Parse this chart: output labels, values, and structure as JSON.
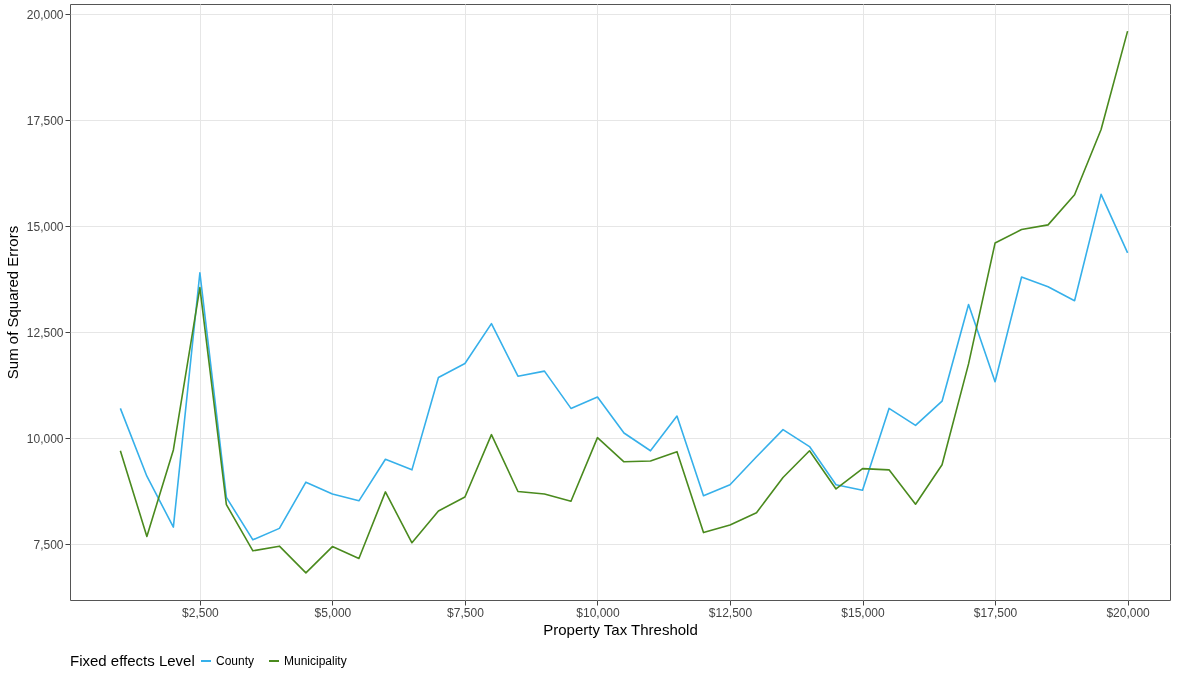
{
  "chart_data": {
    "type": "line",
    "xlabel": "Property Tax Threshold",
    "ylabel": "Sum of Squared Errors",
    "legend_title": "Fixed effects Level",
    "legend": "bottom",
    "grid": true,
    "x": [
      1000,
      1500,
      2000,
      2500,
      3000,
      3500,
      4000,
      4500,
      5000,
      5500,
      6000,
      6500,
      7000,
      7500,
      8000,
      8500,
      9000,
      9500,
      10000,
      10500,
      11000,
      11500,
      12000,
      12500,
      13000,
      13500,
      14000,
      14500,
      15000,
      15500,
      16000,
      16500,
      17000,
      17500,
      18000,
      18500,
      19000,
      19500,
      20000
    ],
    "xlim": [
      50,
      20800
    ],
    "xticks": [
      {
        "value": 2500,
        "label": "$2,500"
      },
      {
        "value": 5000,
        "label": "$5,000"
      },
      {
        "value": 7500,
        "label": "$7,500"
      },
      {
        "value": 10000,
        "label": "$10,000"
      },
      {
        "value": 12500,
        "label": "$12,500"
      },
      {
        "value": 15000,
        "label": "$15,000"
      },
      {
        "value": 17500,
        "label": "$17,500"
      },
      {
        "value": 20000,
        "label": "$20,000"
      }
    ],
    "ylim": [
      6180,
      20240
    ],
    "yticks": [
      {
        "value": 7500,
        "label": "7,500"
      },
      {
        "value": 10000,
        "label": "10,000"
      },
      {
        "value": 12500,
        "label": "12,500"
      },
      {
        "value": 15000,
        "label": "15,000"
      },
      {
        "value": 17500,
        "label": "17,500"
      },
      {
        "value": 20000,
        "label": "20,000"
      }
    ],
    "series": [
      {
        "name": "County",
        "color": "#36b0ea",
        "values": [
          10700,
          9100,
          7900,
          13900,
          8600,
          7600,
          7870,
          8960,
          8680,
          8520,
          9500,
          9250,
          11430,
          11760,
          12700,
          11460,
          11580,
          10700,
          10970,
          10120,
          9700,
          10520,
          8640,
          8900,
          9560,
          10200,
          9800,
          8900,
          8770,
          10700,
          10300,
          10870,
          13150,
          11330,
          13800,
          13570,
          13240,
          15750,
          14370
        ]
      },
      {
        "name": "Municipality",
        "color": "#4a8a1e",
        "values": [
          9700,
          7680,
          9720,
          13550,
          8430,
          7340,
          7450,
          6820,
          7440,
          7160,
          8730,
          7530,
          8280,
          8610,
          10080,
          8740,
          8680,
          8510,
          10010,
          9440,
          9460,
          9680,
          7770,
          7950,
          8240,
          9070,
          9700,
          8800,
          9280,
          9250,
          8440,
          9370,
          11750,
          14600,
          14920,
          15030,
          15740,
          17280,
          19600
        ]
      }
    ]
  }
}
